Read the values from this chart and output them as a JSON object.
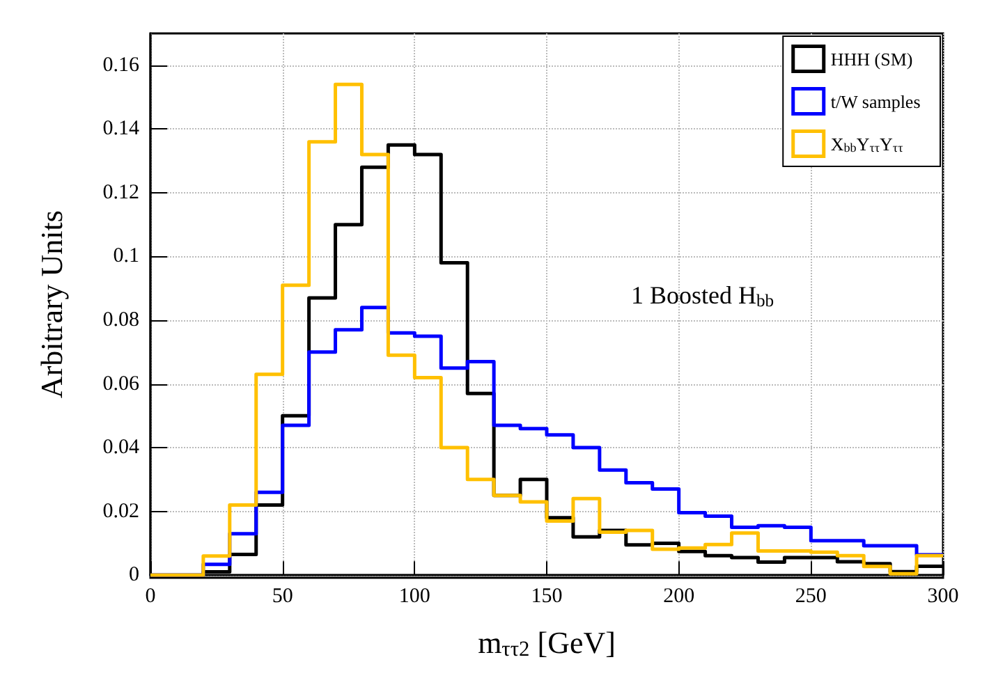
{
  "chart_data": {
    "type": "histogram",
    "xlabel": "m$_{ττ2}$ [GeV]",
    "ylabel": "Arbitrary Units",
    "bins": [
      0,
      10,
      20,
      30,
      40,
      50,
      60,
      70,
      80,
      90,
      100,
      110,
      120,
      130,
      140,
      150,
      160,
      170,
      180,
      190,
      200,
      210,
      220,
      230,
      240,
      250,
      260,
      270,
      280,
      290,
      300
    ],
    "series": [
      {
        "name": "HHH (SM)",
        "color": "#000000",
        "values": [
          0,
          0,
          0.001,
          0.0065,
          0.022,
          0.05,
          0.087,
          0.11,
          0.128,
          0.135,
          0.132,
          0.098,
          0.057,
          0.025,
          0.03,
          0.018,
          0.012,
          0.014,
          0.0095,
          0.01,
          0.0074,
          0.0061,
          0.0055,
          0.0041,
          0.0055,
          0.0055,
          0.0042,
          0.0036,
          0.0011,
          0.0028
        ]
      },
      {
        "name": "t/W samples",
        "color": "#0000ff",
        "values": [
          0,
          0,
          0.0034,
          0.013,
          0.026,
          0.047,
          0.07,
          0.077,
          0.084,
          0.076,
          0.075,
          0.065,
          0.067,
          0.047,
          0.046,
          0.044,
          0.04,
          0.033,
          0.029,
          0.027,
          0.0196,
          0.0185,
          0.015,
          0.0155,
          0.015,
          0.0108,
          0.0108,
          0.0092,
          0.0092,
          0.0064
        ]
      },
      {
        "name": "X$_{bb}$Y$_{ττ}$Y$_{ττ}$",
        "color": "#ffc000",
        "values": [
          0,
          0,
          0.006,
          0.022,
          0.063,
          0.091,
          0.136,
          0.154,
          0.132,
          0.069,
          0.062,
          0.04,
          0.03,
          0.025,
          0.023,
          0.017,
          0.024,
          0.0135,
          0.014,
          0.0081,
          0.0085,
          0.0096,
          0.0132,
          0.0076,
          0.0076,
          0.0072,
          0.0061,
          0.0027,
          0.0004,
          0.0061
        ]
      }
    ],
    "xlim": [
      0,
      300
    ],
    "xticks": [
      0,
      50,
      100,
      150,
      200,
      250,
      300
    ],
    "ylim": [
      0,
      0.17
    ],
    "yticks": [
      0,
      0.02,
      0.04,
      0.06,
      0.08,
      0.1,
      0.12,
      0.14,
      0.16
    ],
    "annotations": [
      "1 Boosted H$_{bb}$"
    ],
    "grid": true,
    "legend": "top right"
  }
}
